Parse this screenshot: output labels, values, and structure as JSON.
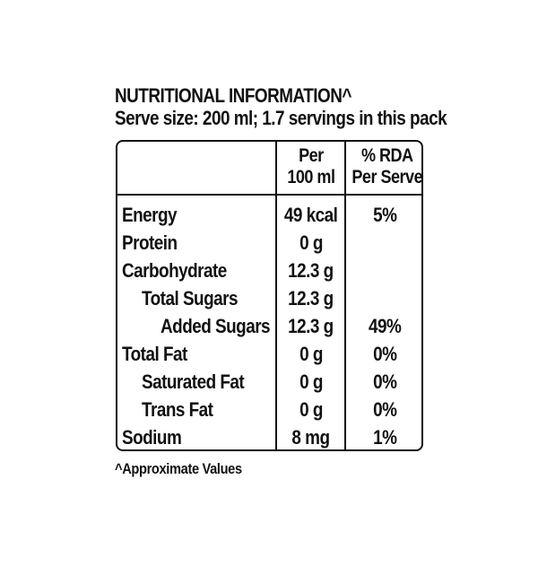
{
  "label": {
    "title": "NUTRITIONAL INFORMATION^",
    "serve_size": "Serve size: 200 ml; 1.7 servings in this pack"
  },
  "table": {
    "headers": {
      "per_line1": "Per",
      "per_line2": "100 ml",
      "rda_line1": "% RDA",
      "rda_line2": "Per Serve"
    },
    "rows": [
      {
        "name": "Energy",
        "per": "49 kcal",
        "rda": "5%"
      },
      {
        "name": "Protein",
        "per": "0 g",
        "rda": ""
      },
      {
        "name": "Carbohydrate",
        "per": "12.3 g",
        "rda": ""
      },
      {
        "name": "Total Sugars",
        "per": "12.3 g",
        "rda": ""
      },
      {
        "name": "Added Sugars",
        "per": "12.3 g",
        "rda": "49%"
      },
      {
        "name": "Total Fat",
        "per": "0 g",
        "rda": "0%"
      },
      {
        "name": "Saturated Fat",
        "per": "0 g",
        "rda": "0%"
      },
      {
        "name": "Trans Fat",
        "per": "0 g",
        "rda": "0%"
      },
      {
        "name": "Sodium",
        "per": "8 mg",
        "rda": "1%"
      }
    ]
  },
  "footnote": "^Approximate Values"
}
